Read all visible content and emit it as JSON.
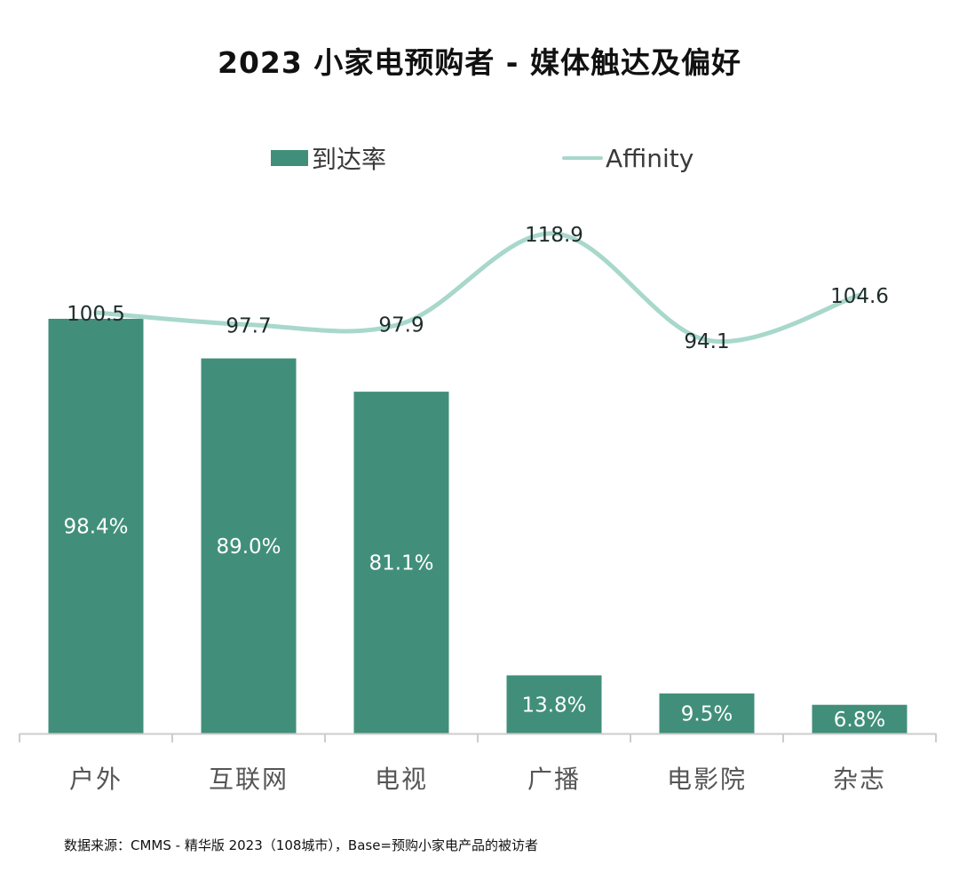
{
  "chart_data": {
    "type": "bar",
    "title": "2023 小家电预购者 - 媒体触达及偏好",
    "categories": [
      "户外",
      "互联网",
      "电视",
      "广播",
      "电影院",
      "杂志"
    ],
    "series": [
      {
        "name": "到达率",
        "type": "bar",
        "values": [
          98.4,
          89.0,
          81.1,
          13.8,
          9.5,
          6.8
        ],
        "labels": [
          "98.4%",
          "89.0%",
          "81.1%",
          "13.8%",
          "9.5%",
          "6.8%"
        ],
        "color": "#418F7A"
      },
      {
        "name": "Affinity",
        "type": "line",
        "values": [
          100.5,
          97.7,
          97.9,
          118.9,
          94.1,
          104.6
        ],
        "labels": [
          "100.5",
          "97.7",
          "97.9",
          "118.9",
          "94.1",
          "104.6"
        ],
        "color": "#A8D8CB"
      }
    ],
    "legend_position": "top",
    "grid": false
  },
  "footnote": "数据来源：CMMS - 精华版 2023（108城市），Base=预购小家电产品的被访者"
}
